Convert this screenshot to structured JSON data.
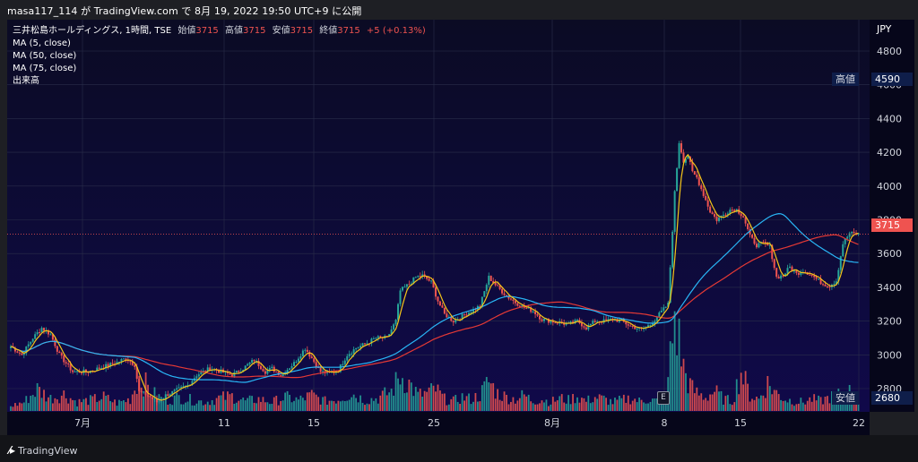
{
  "header": {
    "publish_line": "masa117_114 が TradingView.com で 8月 19, 2022 19:50 UTC+9 に公開"
  },
  "legend": {
    "symbol_line": "三井松島ホールディングス, 1時間, TSE",
    "open_label": "始値",
    "open_value": "3715",
    "high_label": "高値",
    "high_value": "3715",
    "low_label": "安値",
    "low_value": "3715",
    "close_label": "終値",
    "close_value": "3715",
    "change": "+5 (+0.13%)",
    "ma5": "MA (5, close)",
    "ma50": "MA (50, close)",
    "ma75": "MA (75, close)",
    "volume": "出来高"
  },
  "price_axis": {
    "currency": "JPY",
    "ticks": [
      "4800",
      "4600",
      "4400",
      "4200",
      "4000",
      "3800",
      "3600",
      "3400",
      "3200",
      "3000",
      "2800"
    ]
  },
  "tags": {
    "high_label": "高値",
    "high_value": "4590",
    "last_value": "3715",
    "low_label": "安値",
    "low_value": "2680"
  },
  "date_axis": {
    "ticks": [
      "7月",
      "11",
      "15",
      "25",
      "8月",
      "8",
      "15",
      "22"
    ]
  },
  "event_marker": "E",
  "footer": {
    "brand": "TradingView"
  },
  "colors": {
    "up": "#26a69a",
    "down": "#ef5350",
    "ma5": "#f5c518",
    "ma50": "#29b6f6",
    "ma75": "#e53935"
  },
  "chart_data": {
    "type": "candlestick",
    "title": "三井松島ホールディングス, 1時間, TSE",
    "ylabel": "JPY",
    "ylim": [
      2640,
      4860
    ],
    "x_ticks": [
      "7月",
      "11",
      "15",
      "25",
      "8月",
      "8",
      "15",
      "22"
    ],
    "high": 4590,
    "low": 2680,
    "last": 3715,
    "series": [
      {
        "name": "MA (5, close)",
        "values_source": "derived from closes"
      },
      {
        "name": "MA (50, close)",
        "values_source": "derived from closes"
      },
      {
        "name": "MA (75, close)",
        "values_source": "derived from closes"
      }
    ],
    "close_path": [
      [
        0,
        3050
      ],
      [
        5,
        3000
      ],
      [
        10,
        3100
      ],
      [
        14,
        3160
      ],
      [
        18,
        3120
      ],
      [
        22,
        3000
      ],
      [
        28,
        2900
      ],
      [
        35,
        2900
      ],
      [
        42,
        2930
      ],
      [
        47,
        2950
      ],
      [
        52,
        2980
      ],
      [
        56,
        2940
      ],
      [
        58,
        2780
      ],
      [
        62,
        2760
      ],
      [
        66,
        2720
      ],
      [
        70,
        2760
      ],
      [
        75,
        2790
      ],
      [
        80,
        2820
      ],
      [
        84,
        2880
      ],
      [
        90,
        2920
      ],
      [
        95,
        2900
      ],
      [
        100,
        2880
      ],
      [
        105,
        2920
      ],
      [
        110,
        2970
      ],
      [
        115,
        2900
      ],
      [
        118,
        2920
      ],
      [
        122,
        2880
      ],
      [
        128,
        2950
      ],
      [
        133,
        3040
      ],
      [
        136,
        2980
      ],
      [
        140,
        2900
      ],
      [
        144,
        2890
      ],
      [
        148,
        2910
      ],
      [
        152,
        3000
      ],
      [
        156,
        3040
      ],
      [
        161,
        3070
      ],
      [
        165,
        3100
      ],
      [
        170,
        3100
      ],
      [
        174,
        3200
      ],
      [
        176,
        3380
      ],
      [
        180,
        3420
      ],
      [
        183,
        3460
      ],
      [
        186,
        3470
      ],
      [
        190,
        3430
      ],
      [
        193,
        3320
      ],
      [
        196,
        3240
      ],
      [
        200,
        3200
      ],
      [
        204,
        3230
      ],
      [
        208,
        3260
      ],
      [
        212,
        3290
      ],
      [
        216,
        3460
      ],
      [
        220,
        3400
      ],
      [
        224,
        3350
      ],
      [
        228,
        3310
      ],
      [
        232,
        3280
      ],
      [
        236,
        3260
      ],
      [
        240,
        3210
      ],
      [
        244,
        3200
      ],
      [
        248,
        3190
      ],
      [
        252,
        3180
      ],
      [
        256,
        3200
      ],
      [
        260,
        3160
      ],
      [
        264,
        3200
      ],
      [
        268,
        3200
      ],
      [
        272,
        3210
      ],
      [
        276,
        3200
      ],
      [
        280,
        3170
      ],
      [
        285,
        3150
      ],
      [
        289,
        3180
      ],
      [
        293,
        3240
      ],
      [
        297,
        3300
      ],
      [
        300,
        3960
      ],
      [
        302,
        4260
      ],
      [
        304,
        4150
      ],
      [
        306,
        4180
      ],
      [
        308,
        4080
      ],
      [
        310,
        4050
      ],
      [
        313,
        3950
      ],
      [
        316,
        3850
      ],
      [
        319,
        3800
      ],
      [
        322,
        3830
      ],
      [
        325,
        3860
      ],
      [
        328,
        3860
      ],
      [
        331,
        3820
      ],
      [
        334,
        3700
      ],
      [
        337,
        3650
      ],
      [
        340,
        3660
      ],
      [
        343,
        3640
      ],
      [
        346,
        3460
      ],
      [
        349,
        3470
      ],
      [
        352,
        3520
      ],
      [
        355,
        3480
      ],
      [
        358,
        3500
      ],
      [
        361,
        3480
      ],
      [
        364,
        3450
      ],
      [
        367,
        3420
      ],
      [
        370,
        3410
      ],
      [
        373,
        3440
      ],
      [
        376,
        3660
      ],
      [
        379,
        3720
      ],
      [
        383,
        3715
      ]
    ],
    "volume_path": [
      [
        0,
        5
      ],
      [
        6,
        9
      ],
      [
        12,
        22
      ],
      [
        18,
        13
      ],
      [
        24,
        17
      ],
      [
        30,
        9
      ],
      [
        36,
        11
      ],
      [
        42,
        14
      ],
      [
        48,
        8
      ],
      [
        54,
        12
      ],
      [
        58,
        35
      ],
      [
        64,
        18
      ],
      [
        70,
        10
      ],
      [
        76,
        14
      ],
      [
        82,
        11
      ],
      [
        88,
        9
      ],
      [
        94,
        13
      ],
      [
        100,
        15
      ],
      [
        106,
        10
      ],
      [
        112,
        12
      ],
      [
        118,
        9
      ],
      [
        124,
        14
      ],
      [
        130,
        11
      ],
      [
        136,
        16
      ],
      [
        142,
        10
      ],
      [
        148,
        12
      ],
      [
        154,
        18
      ],
      [
        160,
        11
      ],
      [
        166,
        13
      ],
      [
        172,
        20
      ],
      [
        176,
        36
      ],
      [
        180,
        28
      ],
      [
        184,
        16
      ],
      [
        188,
        18
      ],
      [
        192,
        22
      ],
      [
        196,
        12
      ],
      [
        200,
        10
      ],
      [
        204,
        14
      ],
      [
        208,
        12
      ],
      [
        212,
        16
      ],
      [
        216,
        30
      ],
      [
        220,
        18
      ],
      [
        224,
        14
      ],
      [
        228,
        12
      ],
      [
        232,
        16
      ],
      [
        236,
        10
      ],
      [
        240,
        12
      ],
      [
        244,
        9
      ],
      [
        248,
        13
      ],
      [
        252,
        11
      ],
      [
        256,
        15
      ],
      [
        260,
        10
      ],
      [
        264,
        14
      ],
      [
        268,
        12
      ],
      [
        272,
        9
      ],
      [
        276,
        11
      ],
      [
        280,
        13
      ],
      [
        284,
        10
      ],
      [
        288,
        12
      ],
      [
        292,
        10
      ],
      [
        296,
        14
      ],
      [
        300,
        95
      ],
      [
        302,
        70
      ],
      [
        304,
        44
      ],
      [
        306,
        30
      ],
      [
        308,
        22
      ],
      [
        310,
        18
      ],
      [
        314,
        14
      ],
      [
        318,
        20
      ],
      [
        322,
        12
      ],
      [
        326,
        10
      ],
      [
        330,
        40
      ],
      [
        334,
        16
      ],
      [
        338,
        12
      ],
      [
        342,
        28
      ],
      [
        346,
        18
      ],
      [
        350,
        12
      ],
      [
        354,
        10
      ],
      [
        358,
        9
      ],
      [
        362,
        12
      ],
      [
        366,
        10
      ],
      [
        370,
        14
      ],
      [
        374,
        16
      ],
      [
        378,
        22
      ],
      [
        383,
        8
      ]
    ],
    "grid": true
  }
}
